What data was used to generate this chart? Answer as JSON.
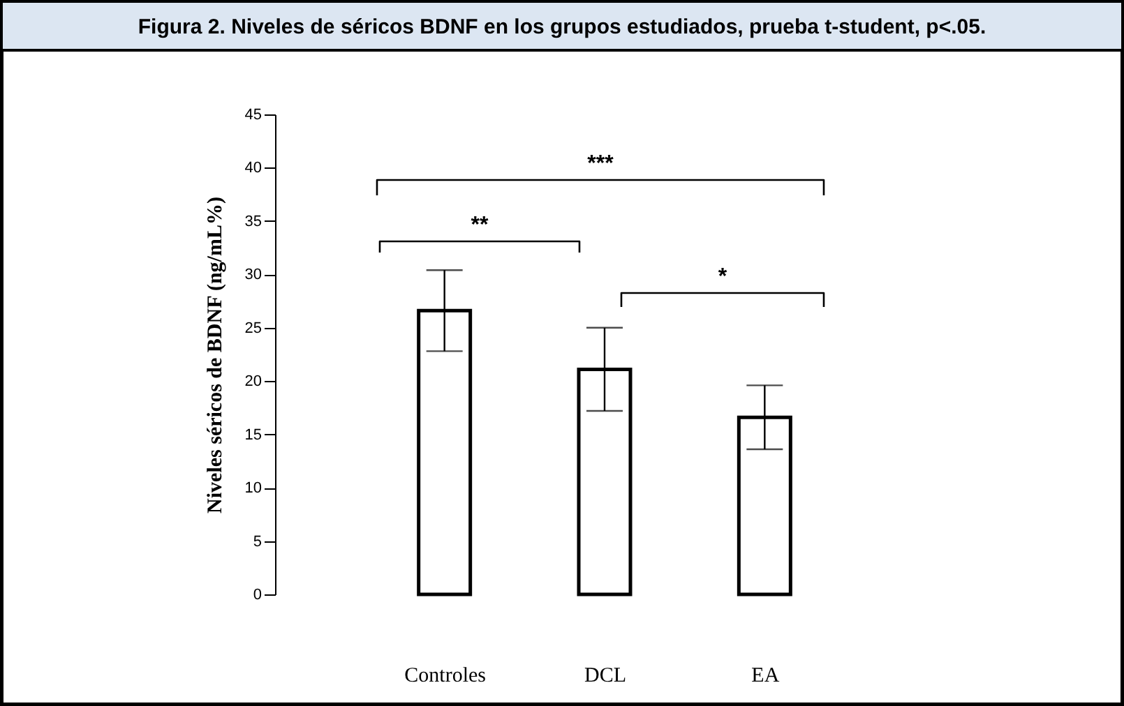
{
  "chart_data": {
    "type": "bar",
    "title": "Figura 2. Niveles de séricos BDNF en los grupos estudiados, prueba t-student, p<.05.",
    "ylabel": "Niveles séricos de BDNF (ng/mL%)",
    "categories": [
      "Controles",
      "DCL",
      "EA"
    ],
    "values": [
      26.6,
      21.1,
      16.6
    ],
    "errors": [
      [
        22.8,
        30.4
      ],
      [
        17.2,
        25.0
      ],
      [
        13.6,
        19.6
      ]
    ],
    "color": "#ffffff",
    "ylim": [
      0,
      45
    ],
    "yticks": [
      0,
      5,
      10,
      15,
      20,
      25,
      30,
      35,
      40,
      45
    ],
    "grid": false,
    "annotations": [
      "***",
      "**",
      "*"
    ]
  }
}
